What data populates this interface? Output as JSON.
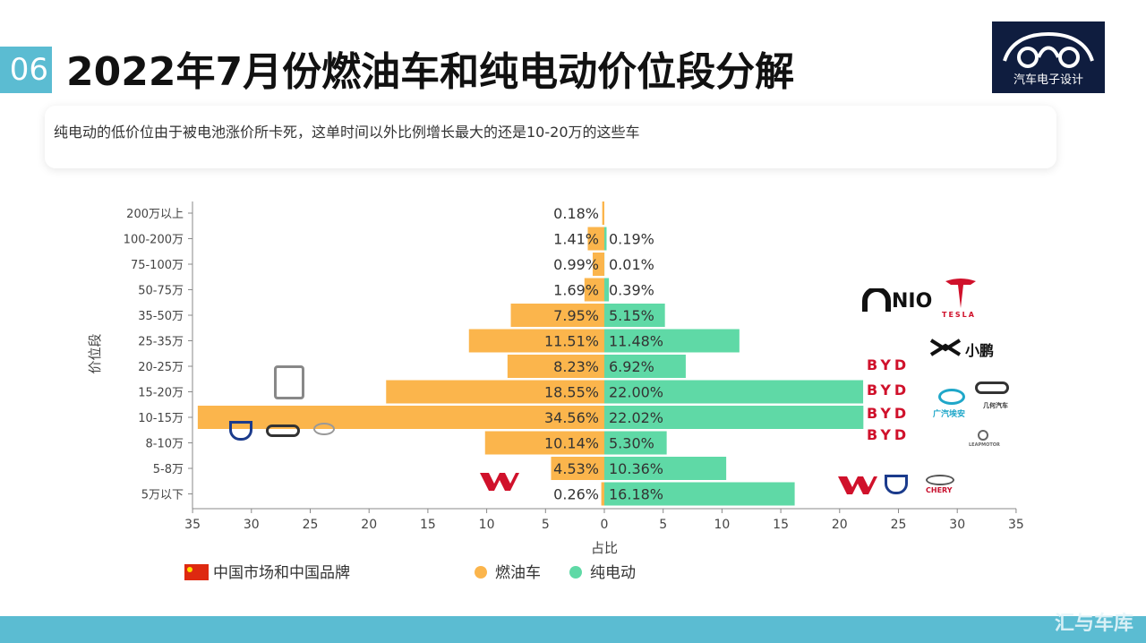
{
  "header": {
    "section_number": "06",
    "title": "2022年7月份燃油车和纯电动价位段分解",
    "logo_text": "汽车电子设计"
  },
  "note": {
    "text": "纯电动的低价位由于被电池涨价所卡死，这单时间以外比例增长最大的还是10-20万的这些车"
  },
  "footer": {
    "text": "汇与车库"
  },
  "brands_left": {
    "tank": "TANK",
    "changan_ev": "长城汽车"
  },
  "brands_right": {
    "nio": "NIO",
    "tesla": "TESLA",
    "xpeng": "小鹏",
    "byd": "BYD",
    "gac_aion": "广汽埃安",
    "geely_geo": "几何汽车",
    "leapmotor": "LEAPMOTOR",
    "chery": "CHERY"
  },
  "chart_data": {
    "type": "bar",
    "orientation": "horizontal-butterfly",
    "categories": [
      "200万以上",
      "100-200万",
      "75-100万",
      "50-75万",
      "35-50万",
      "25-35万",
      "20-25万",
      "15-20万",
      "10-15万",
      "8-10万",
      "5-8万",
      "5万以下"
    ],
    "series": [
      {
        "name": "燃油车",
        "values": [
          0.18,
          1.41,
          0.99,
          1.69,
          7.95,
          11.51,
          8.23,
          18.55,
          34.56,
          10.14,
          4.53,
          0.26
        ],
        "labels": [
          "0.18%",
          "1.41%",
          "0.99%",
          "1.69%",
          "7.95%",
          "11.51%",
          "8.23%",
          "18.55%",
          "34.56%",
          "10.14%",
          "4.53%",
          "0.26%"
        ],
        "color": "#fbb54c"
      },
      {
        "name": "纯电动",
        "values": [
          0,
          0.19,
          0.01,
          0.39,
          5.15,
          11.48,
          6.92,
          22.0,
          22.02,
          5.3,
          10.36,
          16.18
        ],
        "labels": [
          "",
          "0.19%",
          "0.01%",
          "0.39%",
          "5.15%",
          "11.48%",
          "6.92%",
          "22.00%",
          "22.02%",
          "5.30%",
          "10.36%",
          "16.18%"
        ],
        "color": "#5fd9a6"
      }
    ],
    "x_ticks": [
      "35",
      "30",
      "25",
      "20",
      "15",
      "10",
      "5",
      "0",
      "5",
      "10",
      "15",
      "20",
      "25",
      "30",
      "35"
    ],
    "xlim": [
      -35,
      35
    ],
    "xlabel": "占比",
    "ylabel": "价位段",
    "legend": {
      "title": "中国市场和中国品牌",
      "position": "bottom",
      "items": [
        "燃油车",
        "纯电动"
      ]
    }
  }
}
